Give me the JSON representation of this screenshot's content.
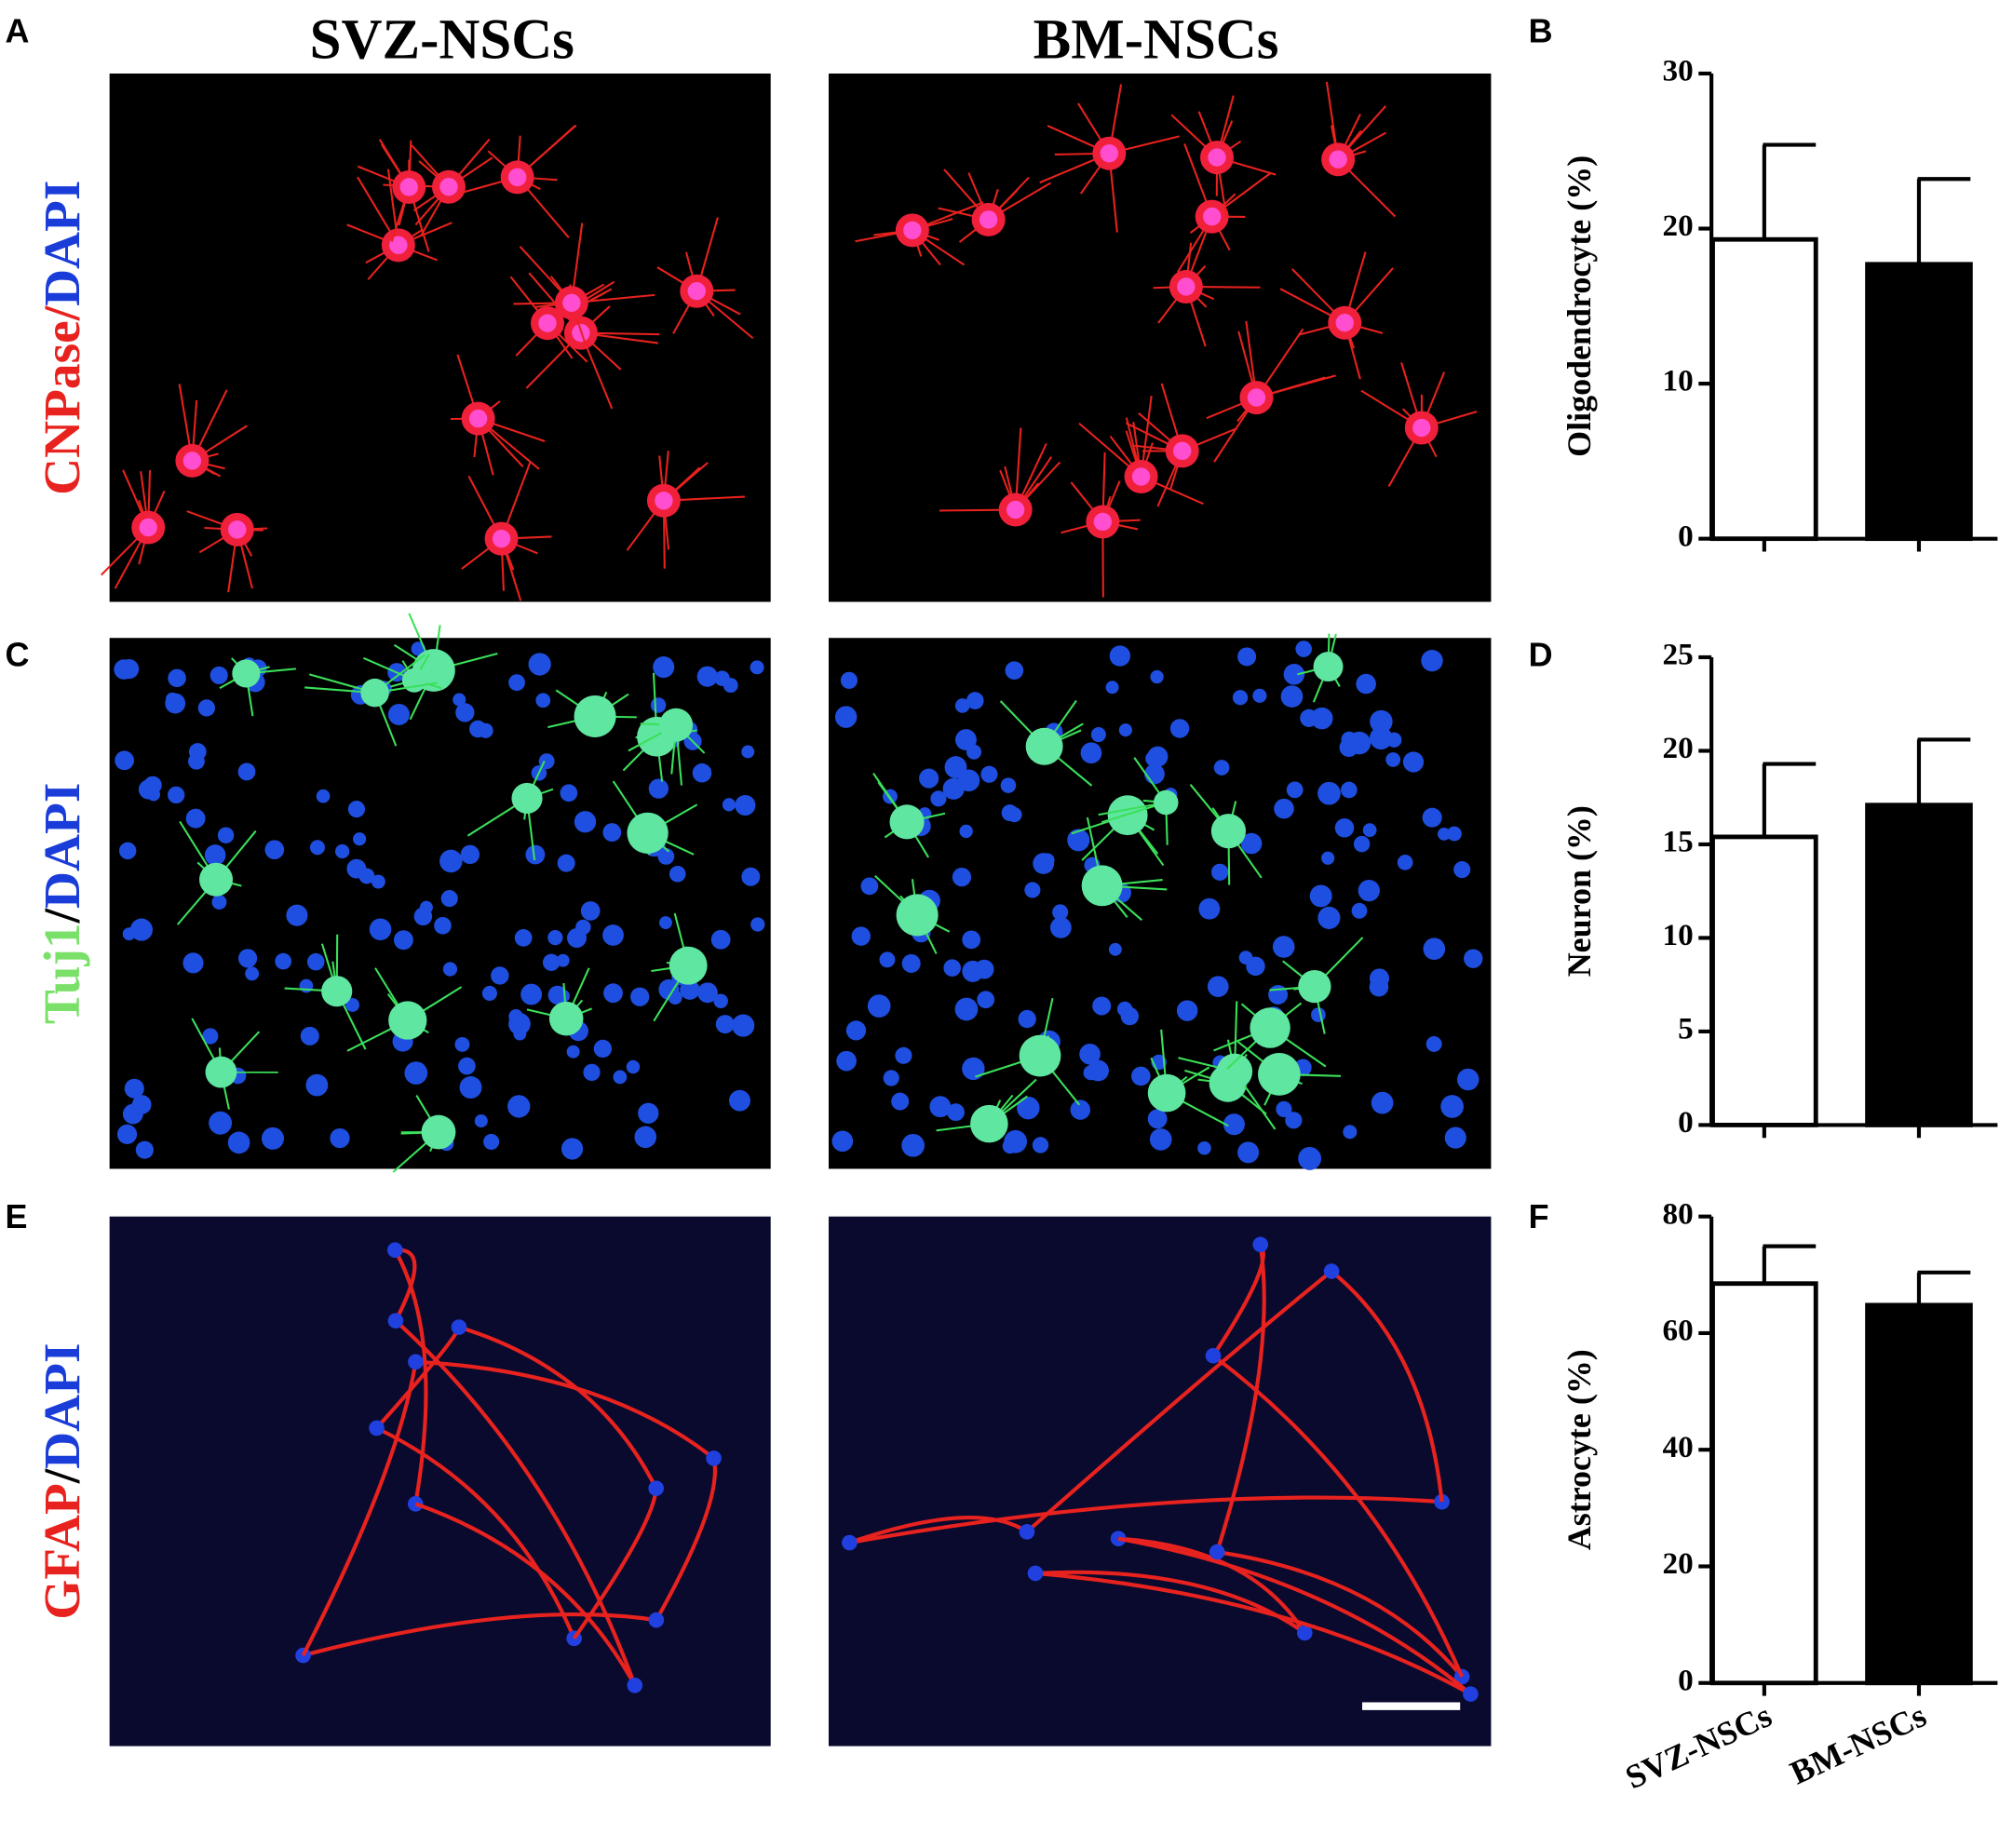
{
  "figure": {
    "panels": [
      "A",
      "B",
      "C",
      "D",
      "E",
      "F"
    ],
    "columns": [
      "SVZ-NSCs",
      "BM-NSCs"
    ],
    "rows": [
      {
        "marker": "CNPase",
        "sep": "/",
        "stain": "DAPI"
      },
      {
        "marker": "Tuj1",
        "sep": "/",
        "stain": "DAPI"
      },
      {
        "marker": "GFAP",
        "sep": "/",
        "stain": "DAPI"
      }
    ]
  },
  "chart_data": [
    {
      "type": "bar",
      "ylabel": "Oligodendrocyte (%)",
      "categories": [
        null,
        null
      ],
      "values": [
        19.3,
        17.7
      ],
      "errors": [
        6.1,
        5.5
      ],
      "colors": [
        "#ffffff",
        "#000000"
      ],
      "ylim": [
        0,
        30
      ],
      "yticks": [
        0,
        10,
        20,
        30
      ]
    },
    {
      "type": "bar",
      "ylabel": "Neuron (%)",
      "categories": [
        null,
        null
      ],
      "values": [
        15.4,
        17.1
      ],
      "errors": [
        3.9,
        3.5
      ],
      "colors": [
        "#ffffff",
        "#000000"
      ],
      "ylim": [
        0,
        25
      ],
      "yticks": [
        0,
        5,
        10,
        15,
        20,
        25
      ]
    },
    {
      "type": "bar",
      "ylabel": "Astrocyte (%)",
      "categories": [
        "SVZ-NSCs",
        "BM-NSCs"
      ],
      "values": [
        68.5,
        64.8
      ],
      "errors": [
        6.4,
        5.6
      ],
      "colors": [
        "#ffffff",
        "#000000"
      ],
      "ylim": [
        0,
        80
      ],
      "yticks": [
        0,
        20,
        40,
        60,
        80
      ]
    }
  ]
}
